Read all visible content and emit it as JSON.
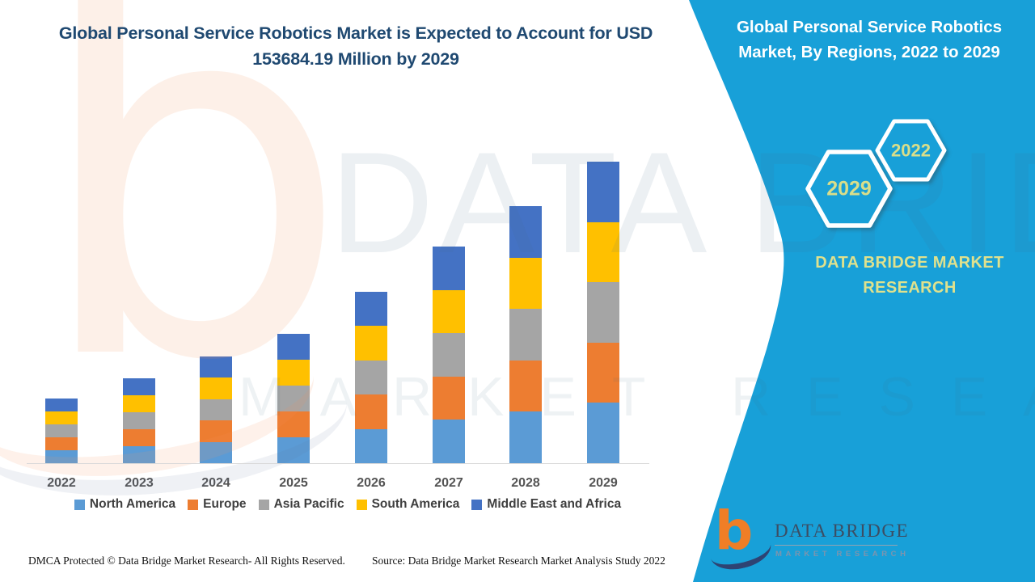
{
  "header": {
    "title": "Global Personal Service Robotics Market is Expected to Account for USD 153684.19 Million by 2029"
  },
  "side_panel": {
    "title": "Global Personal Service Robotics Market, By Regions, 2022 to 2029",
    "hexagon_back_label": "2022",
    "hexagon_front_label": "2029",
    "brand_text": "DATA BRIDGE MARKET RESEARCH"
  },
  "colors": {
    "panel": "#18A0D8",
    "accent_yellow": "#DCE08A",
    "title_blue": "#1F4971",
    "axis_line": "#D9D9D9"
  },
  "chart_data": {
    "type": "bar",
    "stacked": true,
    "title": "Global Personal Service Robotics Market, By Regions, 2022 to 2029",
    "unit": "USD Million",
    "categories": [
      "2022",
      "2023",
      "2024",
      "2025",
      "2026",
      "2027",
      "2028",
      "2029"
    ],
    "series": [
      {
        "name": "North America",
        "color": "#5B9BD5",
        "values": [
          6590,
          8650,
          10880,
          13185,
          17470,
          22085,
          26205,
          30736.84
        ]
      },
      {
        "name": "Europe",
        "color": "#ED7D31",
        "values": [
          6590,
          8650,
          10880,
          13185,
          17470,
          22085,
          26205,
          30736.84
        ]
      },
      {
        "name": "Asia Pacific",
        "color": "#A5A5A5",
        "values": [
          6590,
          8650,
          10880,
          13185,
          17470,
          22085,
          26205,
          30736.84
        ]
      },
      {
        "name": "South America",
        "color": "#FFC000",
        "values": [
          6590,
          8650,
          10880,
          13185,
          17470,
          22085,
          26205,
          30736.84
        ]
      },
      {
        "name": "Middle East and Africa",
        "color": "#4472C4",
        "values": [
          6590,
          8650,
          10880,
          13185,
          17470,
          22085,
          26205,
          30736.84
        ]
      }
    ],
    "totals": [
      32950,
      43250,
      54400,
      65925,
      87350,
      110425,
      131025,
      153684.19
    ],
    "values_estimated": true,
    "anchor": "2029 total = USD 153684.19 Million (from headline)",
    "legend_position": "bottom",
    "y_axis_visible": false,
    "grid": false,
    "ylim": [
      0,
      160000
    ]
  },
  "watermark": {
    "monogram": "b",
    "brand_line": "DATA BRIDGE",
    "spaced_line": "MARKET RESEARCH"
  },
  "footer": {
    "dmca": "DMCA Protected © Data Bridge Market Research- All Rights Reserved.",
    "source": "Source: Data Bridge Market Research Market Analysis Study 2022",
    "logo": {
      "mark": "b",
      "name": "DATA BRIDGE",
      "tagline": "MARKET RESEARCH"
    }
  }
}
